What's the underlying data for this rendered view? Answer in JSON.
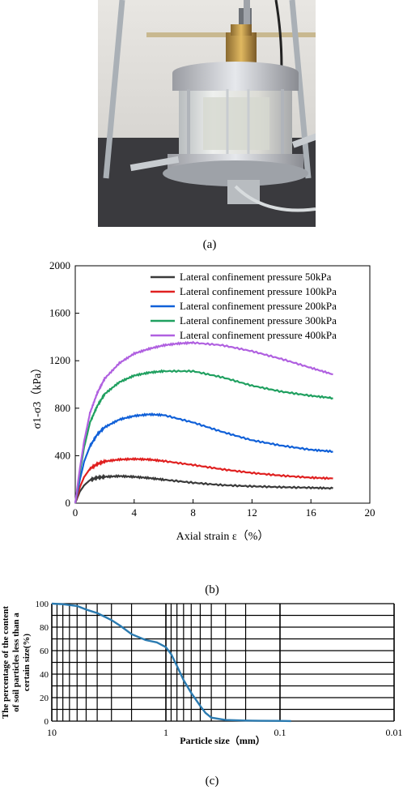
{
  "captions": {
    "a": "(a)",
    "b": "(b)",
    "c": "(c)"
  },
  "chart_data": [
    {
      "type": "line",
      "xlabel": "Axial strain ε（%）",
      "ylabel": "σ1-σ3（kPa）",
      "xlim": [
        0,
        20
      ],
      "ylim": [
        0,
        2000
      ],
      "xticks": [
        "0",
        "4",
        "8",
        "12",
        "16",
        "20"
      ],
      "yticks": [
        "0",
        "400",
        "800",
        "1200",
        "1600",
        "2000"
      ],
      "grid": false,
      "legend": "top-right",
      "series": [
        {
          "name": "Lateral confinement pressure 50kPa",
          "color": "#3a3a3a",
          "x": [
            0,
            0.3,
            0.6,
            1.0,
            1.5,
            2,
            3,
            4,
            5,
            6,
            8,
            10,
            12,
            14,
            16,
            17.5
          ],
          "y": [
            0,
            95,
            150,
            195,
            215,
            222,
            228,
            222,
            212,
            198,
            172,
            152,
            142,
            135,
            130,
            125
          ]
        },
        {
          "name": "Lateral confinement pressure 100kPa",
          "color": "#e02020",
          "x": [
            0,
            0.3,
            0.6,
            1.0,
            1.5,
            2,
            3,
            4,
            5,
            6,
            8,
            10,
            12,
            14,
            16,
            17.5
          ],
          "y": [
            0,
            130,
            220,
            290,
            330,
            352,
            368,
            372,
            368,
            355,
            322,
            285,
            255,
            232,
            215,
            208
          ]
        },
        {
          "name": "Lateral confinement pressure 200kPa",
          "color": "#1060d8",
          "x": [
            0,
            0.3,
            0.6,
            1.0,
            1.5,
            2,
            3,
            4,
            5,
            6,
            8,
            10,
            12,
            14,
            16,
            17.5
          ],
          "y": [
            0,
            190,
            350,
            480,
            580,
            640,
            705,
            735,
            748,
            742,
            680,
            600,
            530,
            485,
            450,
            435
          ]
        },
        {
          "name": "Lateral confinement pressure 300kPa",
          "color": "#20a060",
          "x": [
            0,
            0.3,
            0.6,
            1.0,
            1.5,
            2,
            3,
            4,
            5,
            6,
            8,
            10,
            12,
            14,
            16,
            17.5
          ],
          "y": [
            0,
            250,
            470,
            680,
            820,
            920,
            1020,
            1075,
            1100,
            1112,
            1112,
            1060,
            990,
            940,
            905,
            885
          ]
        },
        {
          "name": "Lateral confinement pressure 400kPa",
          "color": "#b060e0",
          "x": [
            0,
            0.3,
            0.6,
            1.0,
            1.5,
            2,
            3,
            4,
            5,
            6,
            7,
            8,
            10,
            12,
            14,
            16,
            17.5
          ],
          "y": [
            0,
            280,
            520,
            760,
            930,
            1050,
            1180,
            1260,
            1300,
            1330,
            1345,
            1352,
            1330,
            1280,
            1215,
            1140,
            1085
          ]
        }
      ]
    },
    {
      "type": "line",
      "xlabel": "Particle size（mm）",
      "ylabel": "The percentage of the content of soil particles less than a certain size(%)",
      "ylabel_lines": [
        "The percentage of the content",
        "of soil particles less than a",
        "certain size(%)"
      ],
      "xscale": "log",
      "xreversed": true,
      "xlim": [
        10,
        0.01
      ],
      "ylim": [
        0,
        100
      ],
      "xticks": [
        "10",
        "1",
        "0.1",
        "0.01"
      ],
      "yticks": [
        "0",
        "20",
        "40",
        "60",
        "80",
        "100"
      ],
      "grid": true,
      "series": [
        {
          "color": "#2a7ab0",
          "x": [
            10,
            8,
            6,
            5,
            4,
            3,
            2.5,
            2,
            1.5,
            1.2,
            1,
            0.9,
            0.8,
            0.7,
            0.6,
            0.5,
            0.45,
            0.4,
            0.3,
            0.2,
            0.15,
            0.1,
            0.08
          ],
          "y": [
            100,
            99.5,
            98,
            95,
            92,
            86,
            81,
            74,
            69,
            67,
            63,
            57,
            47,
            35,
            24,
            13,
            7,
            3,
            1,
            0.5,
            0.3,
            0.2,
            0.1
          ]
        }
      ]
    }
  ]
}
